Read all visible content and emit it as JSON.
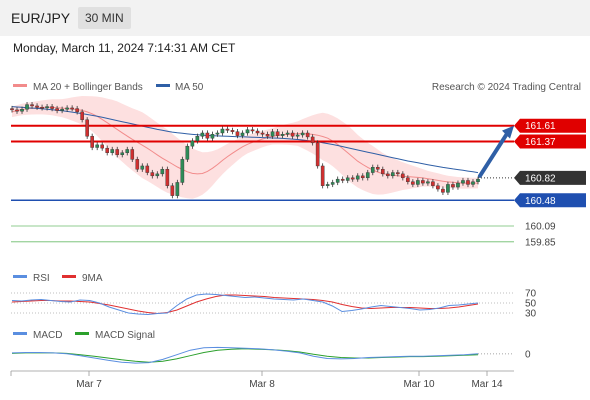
{
  "header": {
    "symbol": "EUR/JPY",
    "timeframe": "30 MIN",
    "timestamp": "Monday, March 11, 2024 7:14:31 AM CET"
  },
  "colors": {
    "bollinger": "#f28b8b",
    "bollinger_fill": "#fde0e0",
    "ma50": "#2f5fa6",
    "resistance": "#e00000",
    "support": "#1f4fb0",
    "target": "#2ca02c",
    "up": "#2e8b57",
    "down": "#d03030",
    "rsi": "#5a8ee0",
    "rsi_ma": "#e03030",
    "macd": "#5a8ee0",
    "macd_signal": "#2ca02c",
    "arrow": "#2f5fa6",
    "current_badge": "#333333"
  },
  "chart_data": [
    {
      "type": "candlestick",
      "panel": "price",
      "legend": [
        "MA 20 + Bollinger Bands",
        "MA 50"
      ],
      "legend_position": "top-left",
      "watermark": "Research © 2024 Trading Central",
      "x_ticks": [
        "Mar 7",
        "Mar 8",
        "Mar 10",
        "Mar 14"
      ],
      "y_levels": {
        "resistance": [
          161.61,
          161.37
        ],
        "current": 160.82,
        "support": 160.48,
        "targets": [
          160.09,
          159.85
        ]
      },
      "ylim": [
        159.65,
        162.0
      ],
      "closes": [
        161.85,
        161.83,
        161.86,
        161.93,
        161.91,
        161.89,
        161.88,
        161.9,
        161.87,
        161.84,
        161.86,
        161.88,
        161.87,
        161.82,
        161.7,
        161.45,
        161.28,
        161.32,
        161.27,
        161.2,
        161.25,
        161.17,
        161.2,
        161.25,
        161.1,
        160.95,
        161.0,
        160.9,
        160.85,
        160.88,
        160.95,
        160.7,
        160.55,
        160.75,
        161.1,
        161.3,
        161.38,
        161.45,
        161.5,
        161.42,
        161.48,
        161.5,
        161.56,
        161.54,
        161.52,
        161.46,
        161.5,
        161.55,
        161.53,
        161.5,
        161.48,
        161.45,
        161.52,
        161.46,
        161.48,
        161.5,
        161.45,
        161.47,
        161.5,
        161.44,
        161.35,
        161.0,
        160.7,
        160.72,
        160.75,
        160.8,
        160.78,
        160.82,
        160.8,
        160.85,
        160.82,
        160.9,
        160.98,
        160.95,
        160.88,
        160.85,
        160.9,
        160.88,
        160.82,
        160.76,
        160.72,
        160.78,
        160.74,
        160.76,
        160.7,
        160.65,
        160.6,
        160.72,
        160.68,
        160.74,
        160.78,
        160.72,
        160.76,
        160.8
      ],
      "ma20": [
        161.82,
        161.85,
        161.87,
        161.88,
        161.89,
        161.89,
        161.88,
        161.87,
        161.86,
        161.84,
        161.8,
        161.74,
        161.66,
        161.58,
        161.5,
        161.42,
        161.35,
        161.28,
        161.2,
        161.12,
        161.05,
        160.98,
        160.92,
        160.88,
        160.88,
        160.93,
        161.02,
        161.12,
        161.2,
        161.28,
        161.34,
        161.38,
        161.42,
        161.45,
        161.47,
        161.48,
        161.49,
        161.49,
        161.48,
        161.46,
        161.42,
        161.35,
        161.25,
        161.15,
        161.05,
        160.98,
        160.92,
        160.88,
        160.86,
        160.85,
        160.84,
        160.83,
        160.82,
        160.8,
        160.78,
        160.76,
        160.75,
        160.74,
        160.74,
        160.74
      ],
      "ma50": [
        161.9,
        161.88,
        161.86,
        161.83,
        161.79,
        161.74,
        161.68,
        161.62,
        161.56,
        161.51,
        161.48,
        161.46,
        161.45,
        161.44,
        161.43,
        161.42,
        161.4,
        161.37,
        161.32,
        161.26,
        161.2,
        161.14,
        161.08,
        161.03,
        160.98,
        160.94,
        160.9
      ]
    },
    {
      "type": "line",
      "panel": "rsi",
      "legend": [
        "RSI",
        "9MA"
      ],
      "levels": [
        70,
        50,
        30
      ],
      "ylim": [
        20,
        80
      ],
      "rsi": [
        55,
        54,
        56,
        57,
        55,
        53,
        52,
        56,
        55,
        50,
        42,
        36,
        30,
        28,
        27,
        29,
        30,
        45,
        58,
        66,
        68,
        67,
        65,
        63,
        61,
        62,
        60,
        58,
        57,
        56,
        58,
        55,
        52,
        44,
        33,
        35,
        38,
        42,
        45,
        43,
        41,
        39,
        36,
        37,
        40,
        45,
        46,
        48,
        50
      ],
      "ma9": [
        52,
        53,
        54,
        55,
        55,
        54,
        54,
        53,
        52,
        49,
        46,
        42,
        38,
        34,
        31,
        29,
        31,
        36,
        44,
        52,
        58,
        63,
        66,
        66,
        65,
        64,
        63,
        61,
        60,
        59,
        58,
        57,
        55,
        52,
        47,
        43,
        40,
        39,
        40,
        41,
        41,
        41,
        40,
        39,
        39,
        40,
        42,
        45,
        48
      ]
    },
    {
      "type": "line",
      "panel": "macd",
      "legend": [
        "MACD",
        "MACD Signal"
      ],
      "levels": [
        0
      ],
      "ylim": [
        -0.35,
        0.3
      ],
      "macd": [
        0.02,
        0.03,
        0.03,
        0.02,
        0.0,
        -0.04,
        -0.09,
        -0.14,
        -0.18,
        -0.2,
        -0.19,
        -0.12,
        -0.02,
        0.08,
        0.13,
        0.14,
        0.13,
        0.12,
        0.11,
        0.09,
        0.06,
        0.02,
        -0.05,
        -0.1,
        -0.11,
        -0.1,
        -0.08,
        -0.07,
        -0.06,
        -0.05,
        -0.05,
        -0.04,
        -0.03,
        -0.02,
        0.0
      ],
      "signal": [
        0.01,
        0.02,
        0.02,
        0.02,
        0.01,
        -0.02,
        -0.05,
        -0.09,
        -0.13,
        -0.16,
        -0.18,
        -0.16,
        -0.11,
        -0.04,
        0.03,
        0.08,
        0.1,
        0.11,
        0.1,
        0.09,
        0.07,
        0.04,
        -0.01,
        -0.05,
        -0.08,
        -0.09,
        -0.09,
        -0.08,
        -0.07,
        -0.06,
        -0.06,
        -0.05,
        -0.04,
        -0.03,
        -0.02
      ]
    }
  ]
}
